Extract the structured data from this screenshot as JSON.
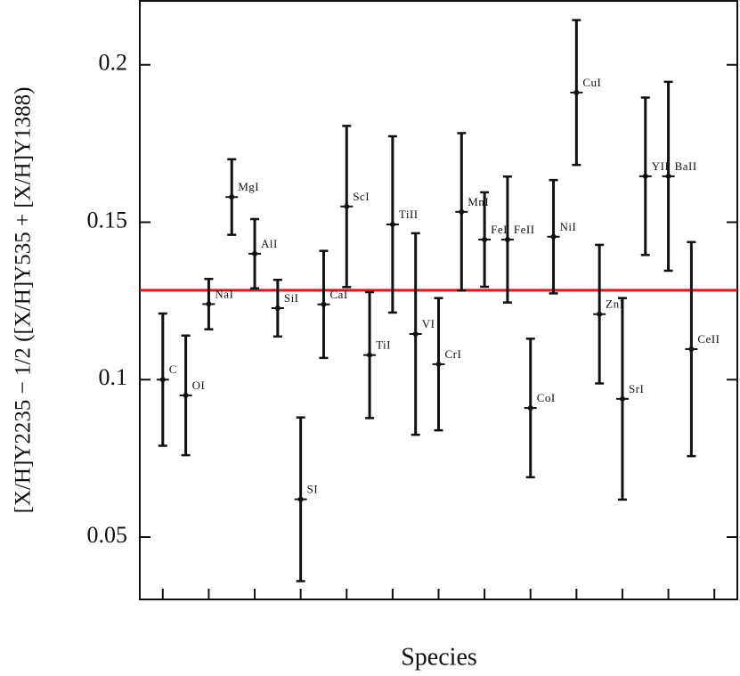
{
  "chart_data": {
    "type": "errorbar",
    "x_label": "Species",
    "y_label": "[X/H]Y2235 − 1/2 ([X/H]Y535 + [X/H]Y1388)",
    "categories": [
      "C",
      "OI",
      "NaI",
      "MgI",
      "AlI",
      "SiI",
      "SI",
      "CaI",
      "ScI",
      "TiI",
      "TiII",
      "VI",
      "CrI",
      "MnI",
      "FeI",
      "FeII",
      "CoI",
      "NiI",
      "CuI",
      "ZnI",
      "SrI",
      "YII",
      "BaII",
      "CeII"
    ],
    "x": [
      1,
      2,
      3,
      4,
      5,
      6,
      7,
      8,
      9,
      10,
      11,
      12,
      13,
      14,
      15,
      16,
      17,
      18,
      19,
      20,
      21,
      22,
      23,
      24
    ],
    "series": [
      {
        "color": "#111111",
        "values": [
          0.1,
          0.095,
          0.124,
          0.158,
          0.14,
          0.1227,
          0.062,
          0.1239,
          0.155,
          0.1078,
          0.1493,
          0.1145,
          0.1049,
          0.1533,
          0.1445,
          0.1445,
          0.091,
          0.1454,
          0.1912,
          0.1208,
          0.0939,
          0.1646,
          0.1646,
          0.1097
        ],
        "errors": [
          0.021,
          0.019,
          0.008,
          0.012,
          0.011,
          0.009,
          0.026,
          0.017,
          0.0256,
          0.02,
          0.028,
          0.032,
          0.021,
          0.025,
          0.015,
          0.02,
          0.022,
          0.018,
          0.023,
          0.022,
          0.032,
          0.025,
          0.03,
          0.034
        ]
      }
    ],
    "reference_line": {
      "value": 0.1284,
      "color": "#e8141c"
    },
    "xlim": [
      0,
      26
    ],
    "xticks": [
      1,
      3,
      5,
      7,
      9,
      11,
      13,
      15,
      17,
      19,
      21,
      23,
      25
    ],
    "ylim": [
      0.0302,
      0.2203
    ],
    "yticks": [
      0.05,
      0.1,
      0.15,
      0.2
    ]
  }
}
